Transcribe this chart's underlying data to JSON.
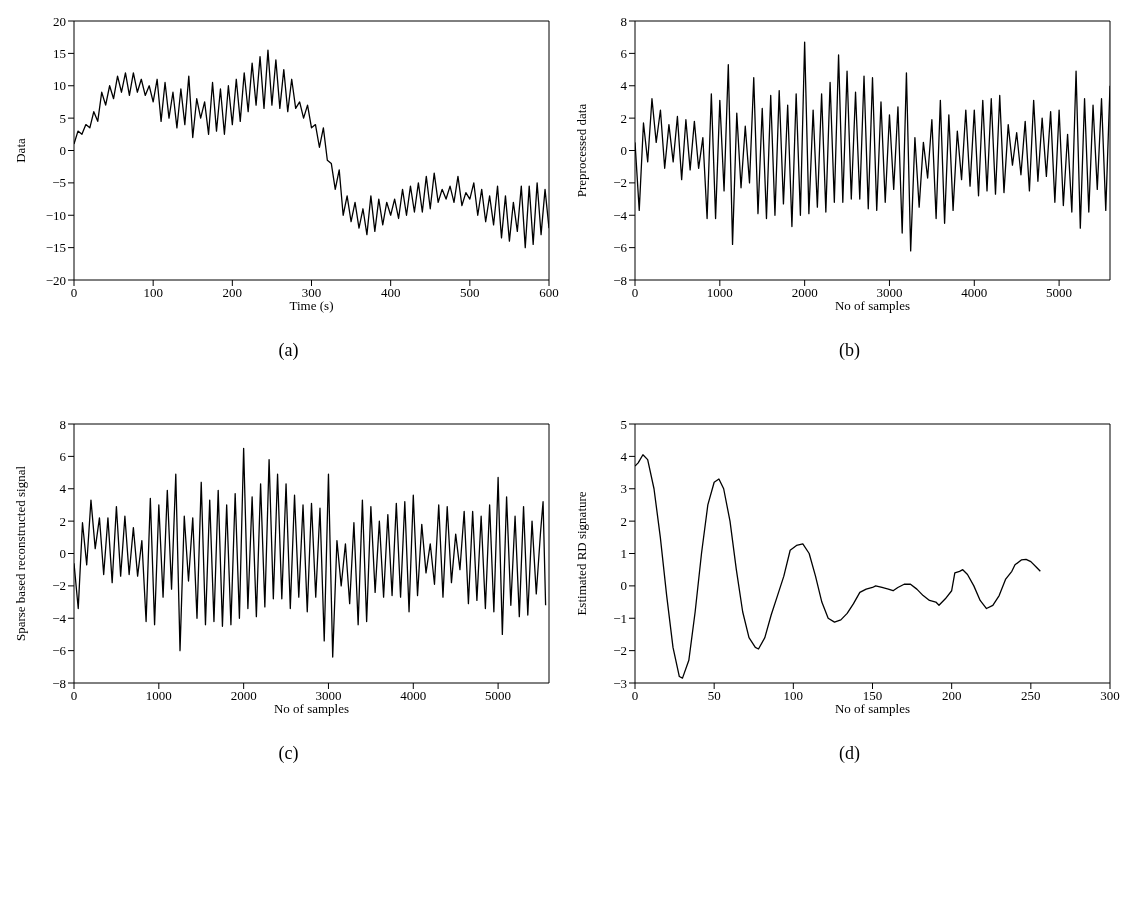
{
  "chart_data": [
    {
      "type": "line",
      "xlabel": "Time (s)",
      "ylabel": "Data",
      "annotations": [
        "(a)"
      ],
      "color": "#000000",
      "xlim": [
        0,
        600
      ],
      "xticks": [
        0,
        100,
        200,
        300,
        400,
        500,
        600
      ],
      "ylim": [
        -20,
        20
      ],
      "yticks": [
        -20,
        -15,
        -10,
        -5,
        0,
        5,
        10,
        15,
        20
      ],
      "x": [
        0,
        5,
        10,
        15,
        20,
        25,
        30,
        35,
        40,
        45,
        50,
        55,
        60,
        65,
        70,
        75,
        80,
        85,
        90,
        95,
        100,
        105,
        110,
        115,
        120,
        125,
        130,
        135,
        140,
        145,
        150,
        155,
        160,
        165,
        170,
        175,
        180,
        185,
        190,
        195,
        200,
        205,
        210,
        215,
        220,
        225,
        230,
        235,
        240,
        245,
        250,
        255,
        260,
        265,
        270,
        275,
        280,
        285,
        290,
        295,
        300,
        305,
        310,
        315,
        320,
        325,
        330,
        335,
        340,
        345,
        350,
        355,
        360,
        365,
        370,
        375,
        380,
        385,
        390,
        395,
        400,
        405,
        410,
        415,
        420,
        425,
        430,
        435,
        440,
        445,
        450,
        455,
        460,
        465,
        470,
        475,
        480,
        485,
        490,
        495,
        500,
        505,
        510,
        515,
        520,
        525,
        530,
        535,
        540,
        545,
        550,
        555,
        560,
        565,
        570,
        575,
        580,
        585,
        590,
        595,
        600
      ],
      "values": [
        1,
        3,
        2.5,
        4,
        3.5,
        6,
        4.5,
        9,
        7,
        10,
        8,
        11.5,
        9,
        12,
        8.5,
        12,
        9,
        11,
        8.5,
        10,
        7.5,
        11,
        4.5,
        10.5,
        5,
        9,
        3.5,
        9.5,
        4,
        11.5,
        2,
        8,
        5,
        7.5,
        2.5,
        10.5,
        3,
        9.5,
        2.5,
        10,
        4,
        11,
        4.5,
        12,
        6,
        13.5,
        7,
        14.5,
        6.5,
        15.5,
        7,
        14,
        6.5,
        12.5,
        6,
        11,
        6.5,
        7.5,
        5,
        7,
        3.5,
        4,
        0.5,
        3.5,
        -1.5,
        -2,
        -6,
        -3,
        -10,
        -7,
        -11,
        -8,
        -12,
        -9,
        -13,
        -7,
        -12.5,
        -7.5,
        -11.5,
        -8,
        -10,
        -7.5,
        -10.5,
        -6,
        -10,
        -5.5,
        -9.5,
        -5,
        -9.5,
        -4,
        -9,
        -3.5,
        -8,
        -6,
        -7.5,
        -5.5,
        -8,
        -4,
        -8.5,
        -6.5,
        -7.5,
        -5,
        -10,
        -6,
        -11,
        -7,
        -11.5,
        -5.5,
        -13.5,
        -7,
        -14,
        -8,
        -12.5,
        -5.5,
        -15,
        -5.5,
        -14.5,
        -5,
        -13,
        -6,
        -12
      ]
    },
    {
      "type": "line",
      "xlabel": "No of samples",
      "ylabel": "Preprocessed data",
      "annotations": [
        "(b)"
      ],
      "color": "#000000",
      "xlim": [
        0,
        5600
      ],
      "xticks": [
        0,
        1000,
        2000,
        3000,
        4000,
        5000
      ],
      "ylim": [
        -8,
        8
      ],
      "yticks": [
        -8,
        -6,
        -4,
        -2,
        0,
        2,
        4,
        6,
        8
      ],
      "x": [
        0,
        50,
        100,
        150,
        200,
        250,
        300,
        350,
        400,
        450,
        500,
        550,
        600,
        650,
        700,
        750,
        800,
        850,
        900,
        950,
        1000,
        1050,
        1100,
        1150,
        1200,
        1250,
        1300,
        1350,
        1400,
        1450,
        1500,
        1550,
        1600,
        1650,
        1700,
        1750,
        1800,
        1850,
        1900,
        1950,
        2000,
        2050,
        2100,
        2150,
        2200,
        2250,
        2300,
        2350,
        2400,
        2450,
        2500,
        2550,
        2600,
        2650,
        2700,
        2750,
        2800,
        2850,
        2900,
        2950,
        3000,
        3050,
        3100,
        3150,
        3200,
        3250,
        3300,
        3350,
        3400,
        3450,
        3500,
        3550,
        3600,
        3650,
        3700,
        3750,
        3800,
        3850,
        3900,
        3950,
        4000,
        4050,
        4100,
        4150,
        4200,
        4250,
        4300,
        4350,
        4400,
        4450,
        4500,
        4550,
        4600,
        4650,
        4700,
        4750,
        4800,
        4850,
        4900,
        4950,
        5000,
        5050,
        5100,
        5150,
        5200,
        5250,
        5300,
        5350,
        5400,
        5450,
        5500,
        5550,
        5600
      ],
      "values": [
        0.5,
        -3.7,
        1.7,
        -0.7,
        3.2,
        0.5,
        2.5,
        -1.1,
        1.6,
        -0.7,
        2.1,
        -1.8,
        1.9,
        -1.2,
        1.8,
        -1.1,
        0.8,
        -4.2,
        3.5,
        -4.2,
        3.1,
        -2.5,
        5.3,
        -5.8,
        2.3,
        -2.3,
        1.5,
        -2,
        4.5,
        -3.9,
        2.6,
        -4.2,
        3.4,
        -4,
        3.7,
        -3.3,
        2.8,
        -4.7,
        3.5,
        -4,
        6.7,
        -3.9,
        2.5,
        -3.5,
        3.5,
        -3.8,
        4.2,
        -3.2,
        5.9,
        -3.2,
        4.9,
        -3,
        3.6,
        -3,
        4.6,
        -3.6,
        4.5,
        -3.7,
        3,
        -3.2,
        2.2,
        -2.4,
        2.7,
        -5.1,
        4.8,
        -6.2,
        0.8,
        -3.5,
        0.5,
        -1.7,
        1.9,
        -4.2,
        3.1,
        -4.5,
        2.2,
        -3.7,
        1.2,
        -1.8,
        2.5,
        -2.2,
        2.5,
        -2.8,
        3.1,
        -2.5,
        3.2,
        -2.7,
        3.4,
        -2.6,
        1.6,
        -0.9,
        1.1,
        -1.5,
        1.8,
        -2.5,
        3.1,
        -1.9,
        2,
        -1.6,
        2.4,
        -3.2,
        2.5,
        -3.4,
        1,
        -3.8,
        4.9,
        -4.8,
        3.2,
        -3.8,
        2.8,
        -2.4,
        3.2,
        -3.7,
        4
      ]
    },
    {
      "type": "line",
      "xlabel": "No of samples",
      "ylabel": "Sparse based reconstructed signal",
      "annotations": [
        "(c)"
      ],
      "color": "#000000",
      "xlim": [
        0,
        5600
      ],
      "xticks": [
        0,
        1000,
        2000,
        3000,
        4000,
        5000
      ],
      "ylim": [
        -8,
        8
      ],
      "yticks": [
        -8,
        -6,
        -4,
        -2,
        0,
        2,
        4,
        6,
        8
      ],
      "x": [
        0,
        50,
        100,
        150,
        200,
        250,
        300,
        350,
        400,
        450,
        500,
        550,
        600,
        650,
        700,
        750,
        800,
        850,
        900,
        950,
        1000,
        1050,
        1100,
        1150,
        1200,
        1250,
        1300,
        1350,
        1400,
        1450,
        1500,
        1550,
        1600,
        1650,
        1700,
        1750,
        1800,
        1850,
        1900,
        1950,
        2000,
        2050,
        2100,
        2150,
        2200,
        2250,
        2300,
        2350,
        2400,
        2450,
        2500,
        2550,
        2600,
        2650,
        2700,
        2750,
        2800,
        2850,
        2900,
        2950,
        3000,
        3050,
        3100,
        3150,
        3200,
        3250,
        3300,
        3350,
        3400,
        3450,
        3500,
        3550,
        3600,
        3650,
        3700,
        3750,
        3800,
        3850,
        3900,
        3950,
        4000,
        4050,
        4100,
        4150,
        4200,
        4250,
        4300,
        4350,
        4400,
        4450,
        4500,
        4550,
        4600,
        4650,
        4700,
        4750,
        4800,
        4850,
        4900,
        4950,
        5000,
        5050,
        5100,
        5150,
        5200,
        5250,
        5300,
        5350,
        5400,
        5450,
        5500,
        5530,
        5560
      ],
      "values": [
        -0.6,
        -3.4,
        1.9,
        -0.7,
        3.3,
        0.3,
        2.2,
        -1.3,
        2.2,
        -1.8,
        2.9,
        -1.4,
        2.3,
        -1.3,
        1.6,
        -1.4,
        0.8,
        -4.2,
        3.4,
        -4.4,
        3,
        -2.7,
        3.9,
        -2.2,
        4.9,
        -6,
        2.3,
        -1.7,
        2.2,
        -4,
        4.4,
        -4.4,
        3.3,
        -4.2,
        3.9,
        -4.5,
        3,
        -4.4,
        3.7,
        -4,
        6.5,
        -3.4,
        3.5,
        -3.9,
        4.3,
        -3.3,
        5.8,
        -2.8,
        4.9,
        -2.8,
        4.3,
        -3.4,
        3.6,
        -2.7,
        3,
        -3.6,
        3.1,
        -2.7,
        2.8,
        -5.4,
        4.9,
        -6.4,
        0.8,
        -2,
        0.6,
        -3.1,
        1.9,
        -4.4,
        3.3,
        -4.2,
        2.9,
        -2.4,
        2,
        -2.7,
        2.4,
        -2.6,
        3.1,
        -2.7,
        3.2,
        -3.6,
        3.6,
        -2.6,
        1.8,
        -1.2,
        0.6,
        -1.9,
        3,
        -2.7,
        2.9,
        -1.8,
        1.2,
        -1,
        2.6,
        -3.1,
        2.6,
        -2.9,
        2.3,
        -3.4,
        3,
        -3.6,
        4.7,
        -5,
        3.5,
        -3.2,
        2.3,
        -3.9,
        2.9,
        -3.8,
        2,
        -2.5,
        1.3,
        3.2,
        -3.2
      ]
    },
    {
      "type": "line",
      "xlabel": "No of samples",
      "ylabel": "Estimated RD signature",
      "annotations": [
        "(d)"
      ],
      "color": "#000000",
      "xlim": [
        0,
        300
      ],
      "xticks": [
        0,
        50,
        100,
        150,
        200,
        250,
        300
      ],
      "ylim": [
        -3,
        5
      ],
      "yticks": [
        -3,
        -2,
        -1,
        0,
        1,
        2,
        3,
        4,
        5
      ],
      "x": [
        0,
        2,
        5,
        8,
        12,
        16,
        20,
        24,
        28,
        30,
        34,
        38,
        42,
        46,
        50,
        53,
        56,
        60,
        64,
        68,
        72,
        76,
        78,
        82,
        86,
        90,
        94,
        98,
        102,
        106,
        110,
        114,
        118,
        122,
        126,
        130,
        134,
        138,
        142,
        146,
        150,
        152,
        156,
        160,
        163,
        166,
        170,
        174,
        178,
        182,
        186,
        190,
        192,
        196,
        200,
        202,
        205,
        207,
        210,
        214,
        218,
        222,
        226,
        230,
        234,
        238,
        240,
        244,
        247,
        250,
        254,
        256
      ],
      "values": [
        3.7,
        3.8,
        4.05,
        3.9,
        3,
        1.5,
        -0.3,
        -1.9,
        -2.8,
        -2.85,
        -2.3,
        -0.8,
        1,
        2.5,
        3.2,
        3.3,
        3,
        2,
        0.5,
        -0.8,
        -1.6,
        -1.9,
        -1.95,
        -1.6,
        -0.9,
        -0.3,
        0.3,
        1.1,
        1.25,
        1.3,
        1,
        0.3,
        -0.5,
        -1,
        -1.12,
        -1.05,
        -0.85,
        -0.55,
        -0.2,
        -0.1,
        -0.05,
        0,
        -0.05,
        -0.1,
        -0.15,
        -0.05,
        0.05,
        0.05,
        -0.1,
        -0.3,
        -0.45,
        -0.5,
        -0.6,
        -0.4,
        -0.15,
        0.4,
        0.45,
        0.5,
        0.35,
        0,
        -0.45,
        -0.7,
        -0.6,
        -0.3,
        0.2,
        0.45,
        0.65,
        0.8,
        0.82,
        0.75,
        0.55,
        0.45
      ]
    }
  ]
}
